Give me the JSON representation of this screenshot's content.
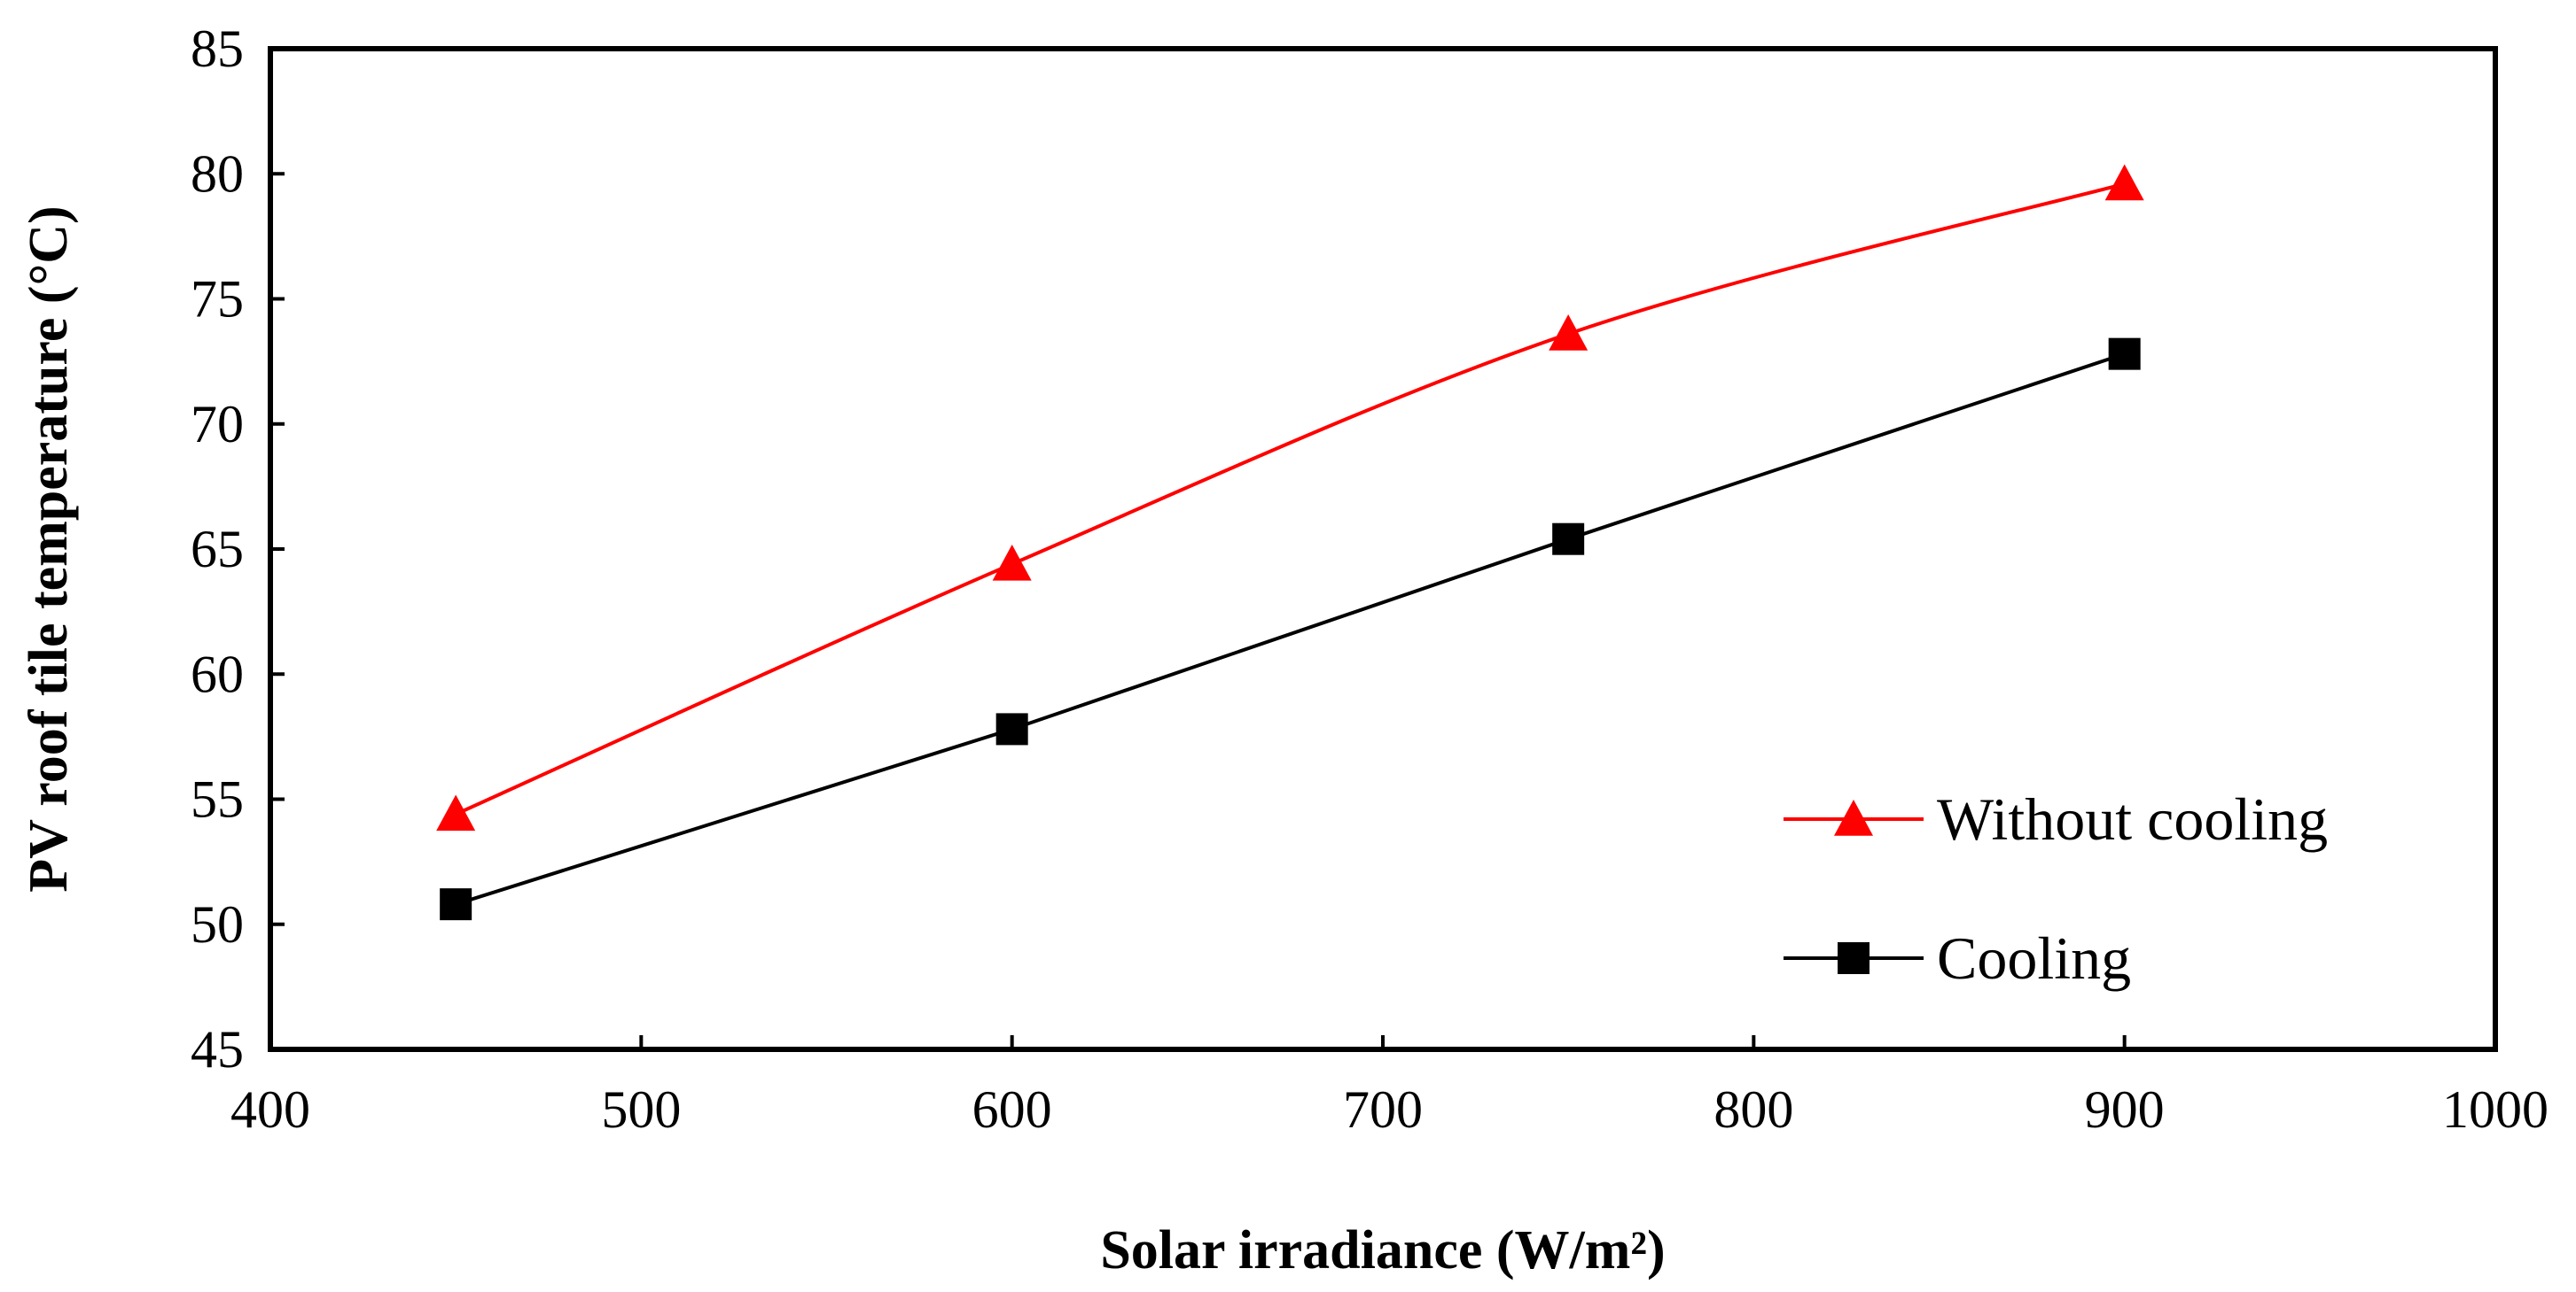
{
  "chart_data": {
    "type": "line",
    "xlabel": "Solar irradiance (W/m²)",
    "ylabel": "PV roof  tile temperature (°C)",
    "xlim": [
      400,
      1000
    ],
    "ylim": [
      45,
      85
    ],
    "x_ticks": [
      400,
      500,
      600,
      700,
      800,
      900,
      1000
    ],
    "y_ticks": [
      45,
      50,
      55,
      60,
      65,
      70,
      75,
      80,
      85
    ],
    "grid": false,
    "legend_position": "bottom-right",
    "series": [
      {
        "name": "Without cooling",
        "color": "#ff0000",
        "marker": "triangle",
        "smooth": true,
        "x": [
          450,
          600,
          750,
          900
        ],
        "y": [
          54.4,
          64.4,
          73.6,
          79.6
        ]
      },
      {
        "name": "Cooling",
        "color": "#000000",
        "marker": "square",
        "smooth": false,
        "x": [
          450,
          600,
          750,
          900
        ],
        "y": [
          50.8,
          57.8,
          65.4,
          72.8
        ]
      }
    ]
  }
}
